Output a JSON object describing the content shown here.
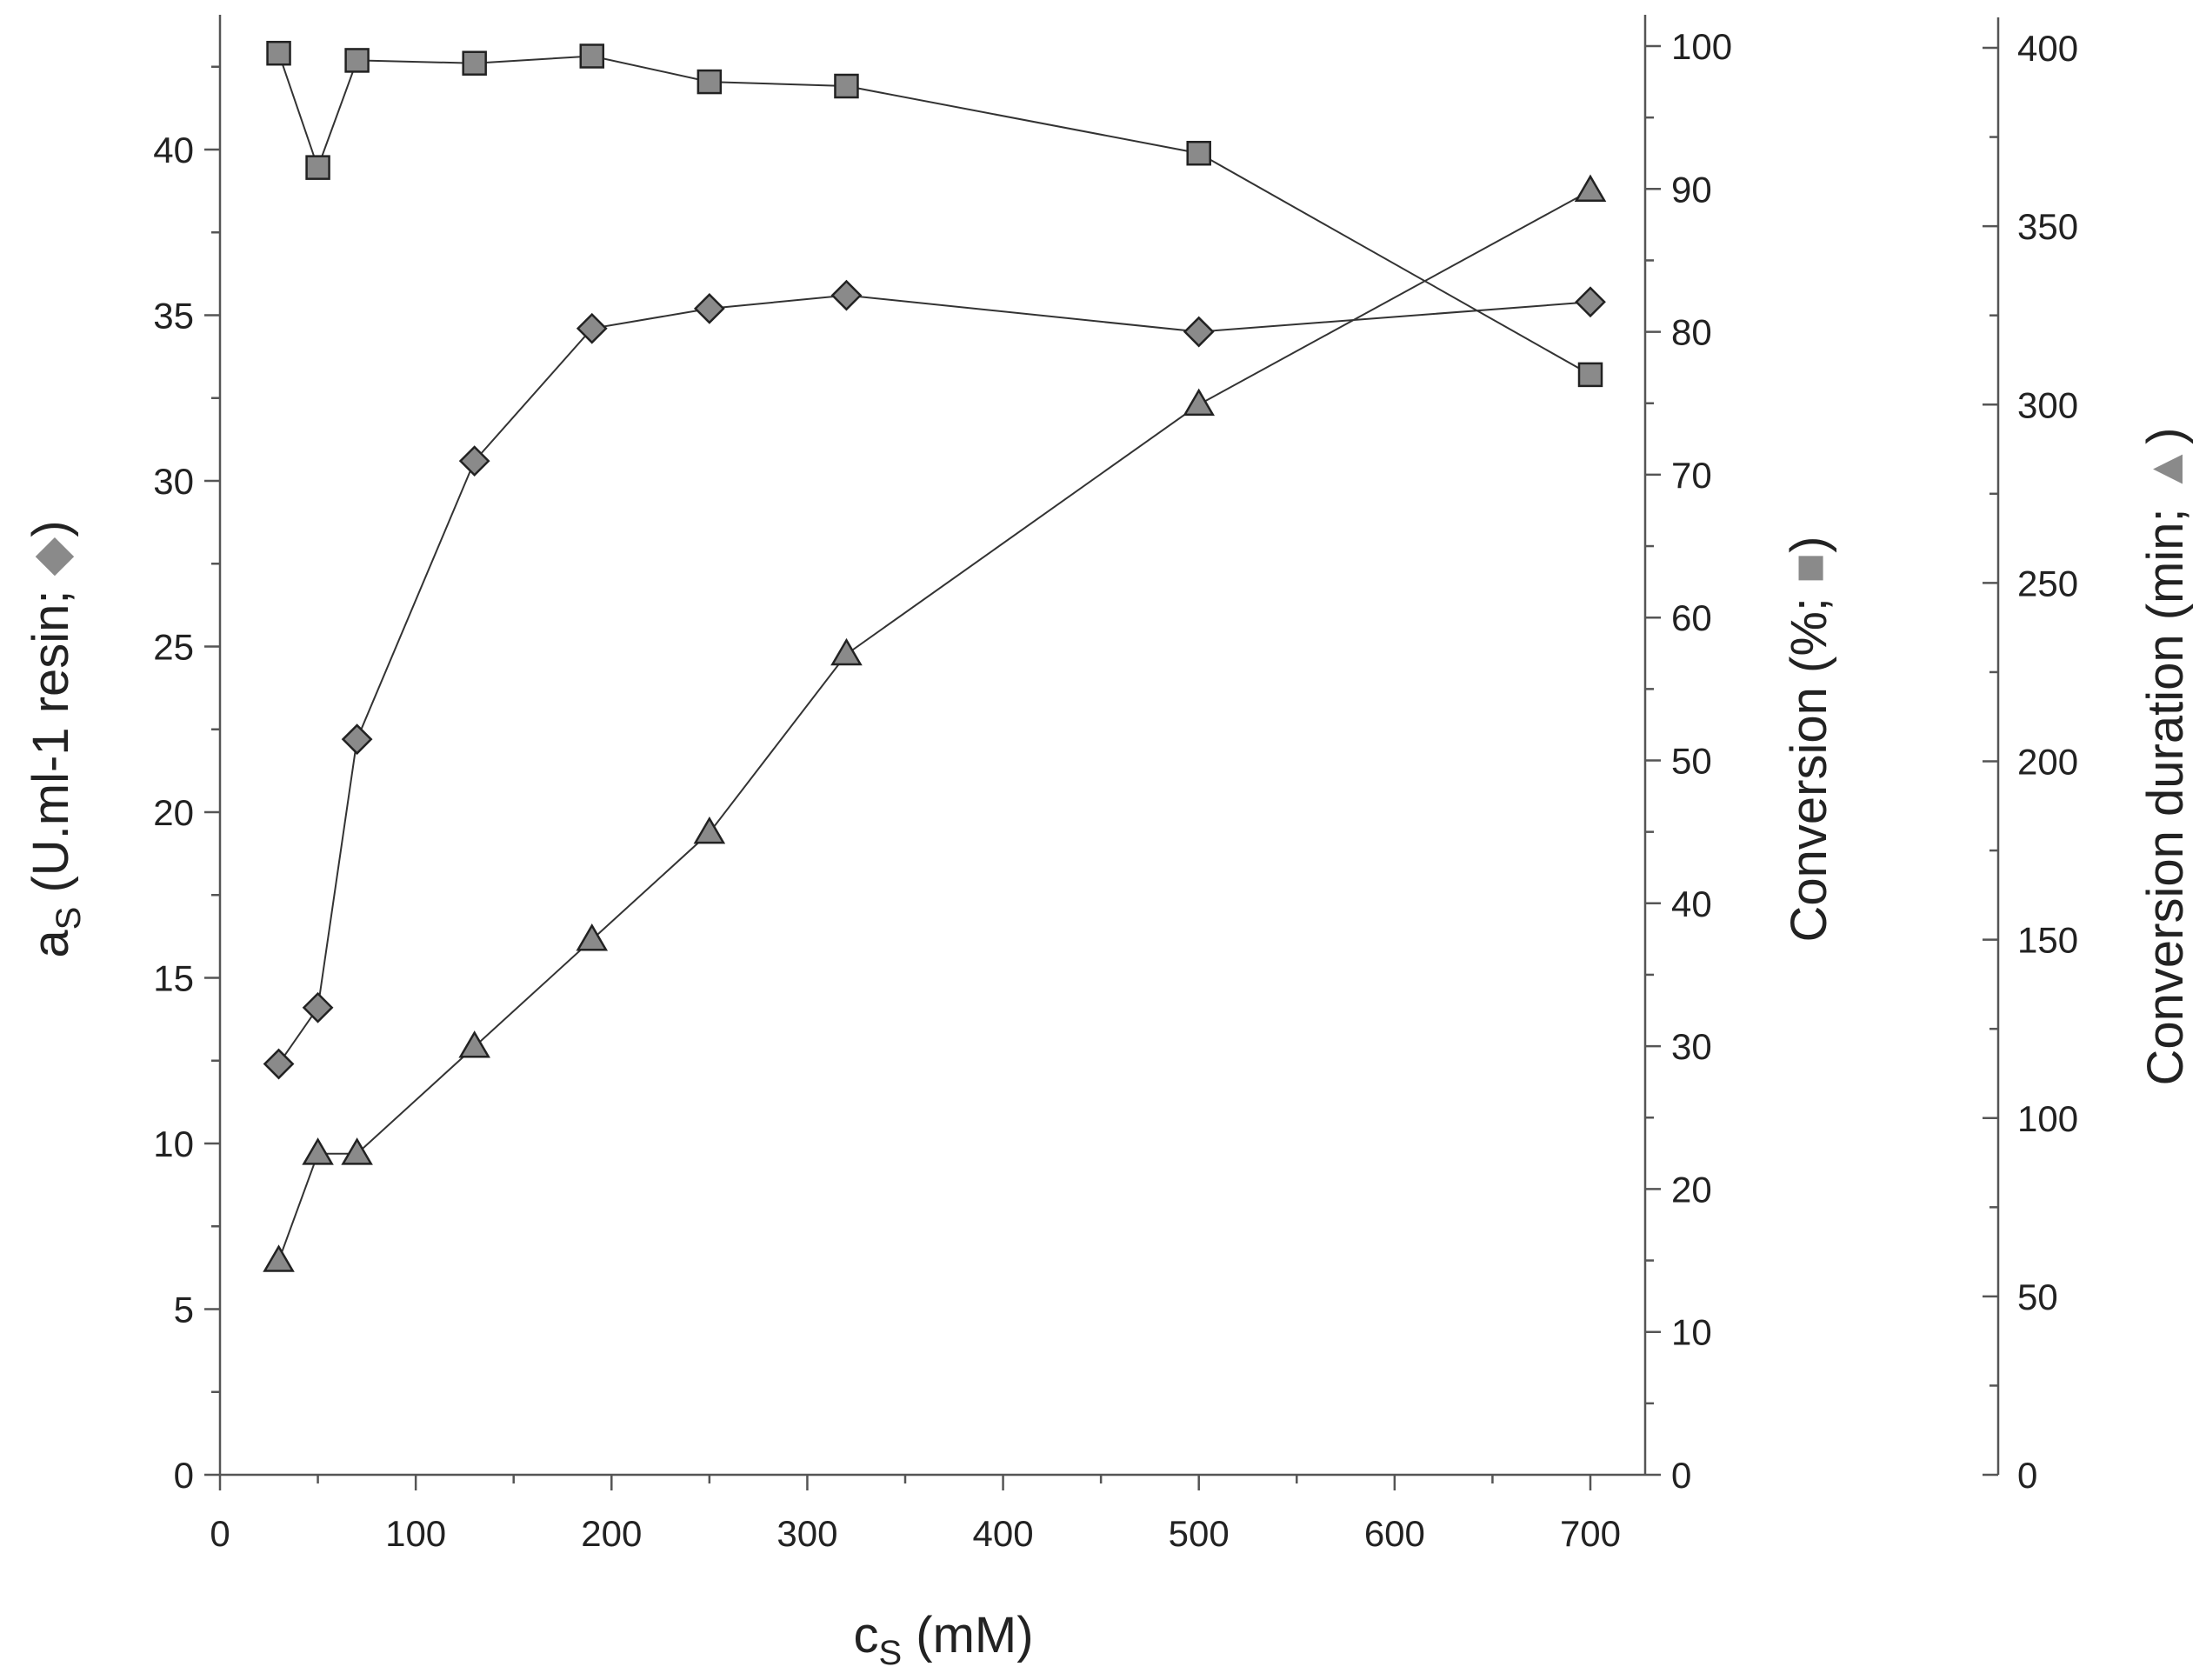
{
  "chart_data": {
    "type": "line",
    "x": [
      30,
      50,
      70,
      130,
      190,
      250,
      320,
      500,
      700
    ],
    "x_axis": {
      "label": "c",
      "label_sub": "S",
      "label_rest": " (mM)",
      "range": [
        0,
        730
      ],
      "ticks": [
        0,
        100,
        200,
        300,
        400,
        500,
        600,
        700
      ],
      "tick_labels": [
        "0",
        "100",
        "200",
        "300",
        "400",
        "500",
        "600",
        "700"
      ]
    },
    "y_axes": [
      {
        "id": "left",
        "label": "a",
        "label_sub": "S",
        "label_rest": " (U.ml-1 resin; ",
        "marker_symbol": "◆",
        "label_end": ")",
        "range": [
          0,
          44
        ],
        "ticks": [
          0,
          5,
          10,
          15,
          20,
          25,
          30,
          35,
          40
        ],
        "tick_labels": [
          "0",
          "5",
          "10",
          "15",
          "20",
          "25",
          "30",
          "35",
          "40"
        ]
      },
      {
        "id": "right1",
        "label": "Conversion (%; ",
        "marker_symbol": "■",
        "label_end": ")",
        "range": [
          0,
          100
        ],
        "ticks": [
          0,
          10,
          20,
          30,
          40,
          50,
          60,
          70,
          80,
          90,
          100
        ],
        "tick_labels": [
          "0",
          "10",
          "20",
          "30",
          "40",
          "50",
          "60",
          "70",
          "80",
          "90",
          "100"
        ]
      },
      {
        "id": "right2",
        "label": "Conversion duration (min; ",
        "marker_symbol": "▲",
        "label_end": ")",
        "range": [
          0,
          400
        ],
        "ticks": [
          0,
          50,
          100,
          150,
          200,
          250,
          300,
          350,
          400
        ],
        "tick_labels": [
          "0",
          "50",
          "100",
          "150",
          "200",
          "250",
          "300",
          "350",
          "400"
        ]
      }
    ],
    "series": [
      {
        "name": "a_S (U.ml-1 resin)",
        "axis": "left",
        "marker": "diamond",
        "values": [
          12.4,
          14.1,
          22.2,
          30.6,
          34.6,
          35.2,
          35.6,
          34.5,
          35.4
        ]
      },
      {
        "name": "Conversion (%)",
        "axis": "right1",
        "marker": "square",
        "values": [
          99.5,
          91.5,
          99.0,
          98.8,
          99.3,
          97.5,
          97.2,
          92.5,
          77.0
        ]
      },
      {
        "name": "Conversion duration (min)",
        "axis": "right2",
        "marker": "triangle",
        "values": [
          60,
          90,
          90,
          120,
          150,
          180,
          230,
          300,
          360
        ]
      }
    ],
    "grid": false,
    "legend": "none"
  }
}
